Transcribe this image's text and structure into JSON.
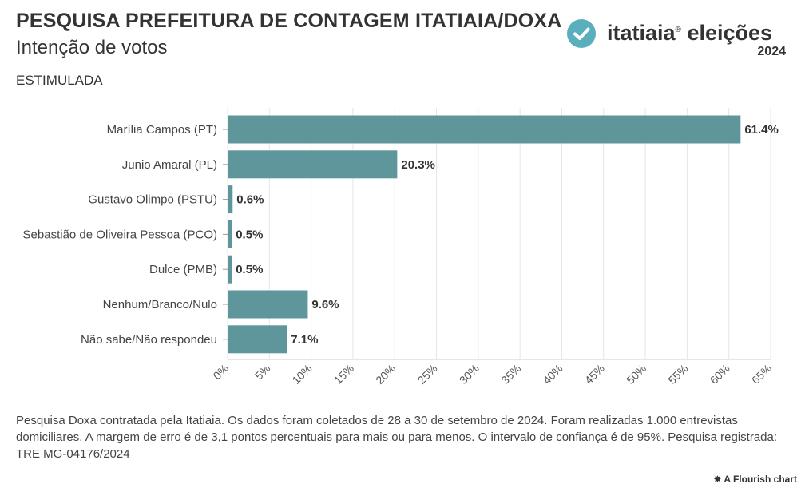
{
  "header": {
    "title": "PESQUISA PREFEITURA DE CONTAGEM ITATIAIA/DOXA",
    "subtitle": "Intenção de votos",
    "label": "ESTIMULADA"
  },
  "brand": {
    "name": "itatiaia",
    "registered": "®",
    "event": "eleições",
    "year": "2024",
    "check_icon": "check-circle-icon",
    "accent_color": "#5aafbd"
  },
  "chart_data": {
    "type": "bar",
    "orientation": "horizontal",
    "categories": [
      "Marília Campos (PT)",
      "Junio Amaral (PL)",
      "Gustavo Olimpo (PSTU)",
      "Sebastião de Oliveira Pessoa (PCO)",
      "Dulce (PMB)",
      "Nenhum/Branco/Nulo",
      "Não sabe/Não respondeu"
    ],
    "values": [
      61.4,
      20.3,
      0.6,
      0.5,
      0.5,
      9.6,
      7.1
    ],
    "data_labels": [
      "61.4%",
      "20.3%",
      "0.6%",
      "0.5%",
      "0.5%",
      "9.6%",
      "7.1%"
    ],
    "x_ticks": [
      0,
      5,
      10,
      15,
      20,
      25,
      30,
      35,
      40,
      45,
      50,
      55,
      60,
      65
    ],
    "x_tick_labels": [
      "0%",
      "5%",
      "10%",
      "15%",
      "20%",
      "25%",
      "30%",
      "35%",
      "40%",
      "45%",
      "50%",
      "55%",
      "60%",
      "65%"
    ],
    "xlim": [
      0,
      65
    ],
    "bar_color": "#5f969c",
    "grid": true
  },
  "footnote": "Pesquisa Doxa contratada pela Itatiaia. Os dados foram coletados de 28 a 30 de setembro de 2024. Foram realizadas 1.000 entrevistas domiciliares. A margem de erro é de 3,1 pontos percentuais para mais ou para menos. O intervalo de confiança é de 95%. Pesquisa registrada: TRE MG-04176/2024",
  "credit": "A Flourish chart"
}
